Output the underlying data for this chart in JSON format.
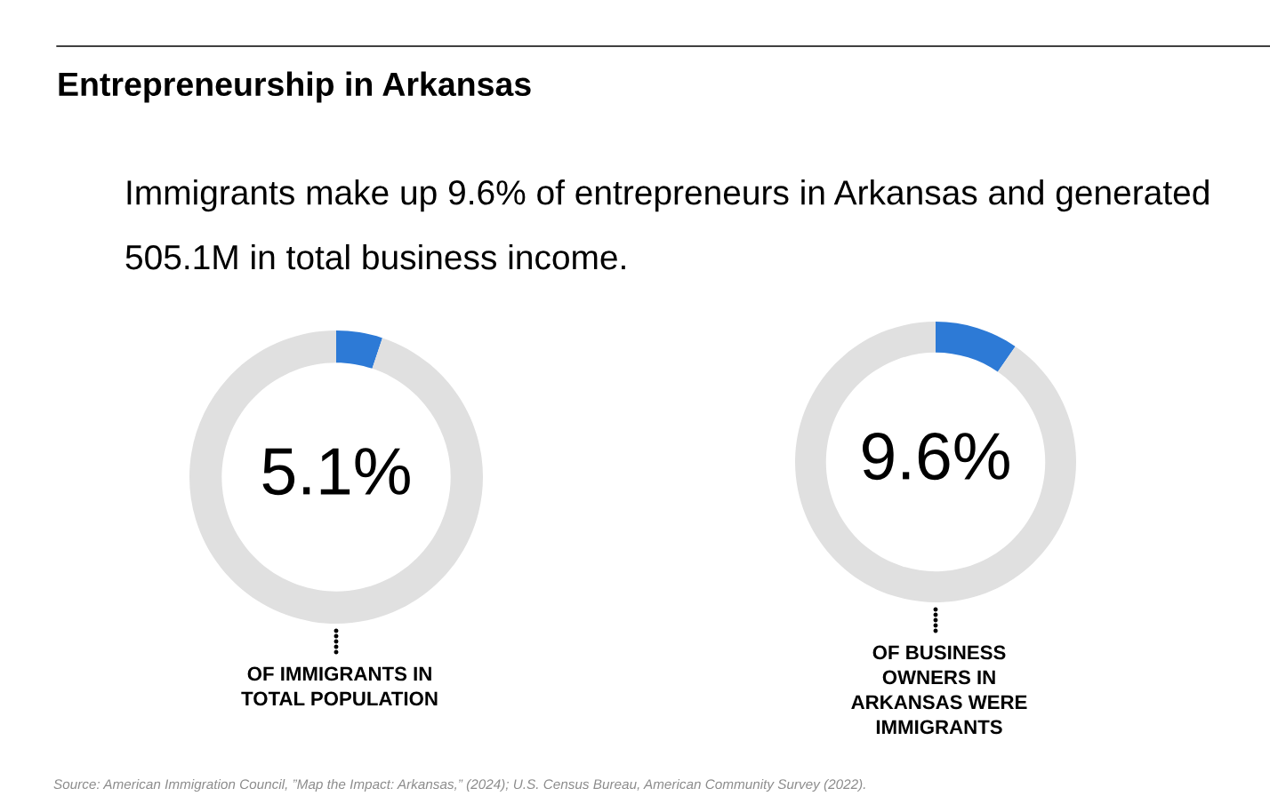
{
  "chart_data": [
    {
      "type": "other",
      "title": "Entrepreneurship in Arkansas",
      "subtitle": "Immigrants make up 9.6% of entrepreneurs in Arkansas and generated 505.1M in total business income.",
      "annotations": [
        "Source: American Immigration Council, ”Map the Impact: Arkansas,” (2024); U.S. Census Bureau, American Community Survey (2022)."
      ]
    },
    {
      "type": "donut",
      "categories": [
        null,
        null
      ],
      "values": [
        5.1,
        94.9
      ],
      "colors": [
        "#2d7ad6",
        "#e0e0e0"
      ],
      "value_labels": [
        "5.1%",
        null
      ],
      "annotations": [
        "OF IMMIGRANTS IN\nTOTAL POPULATION"
      ]
    },
    {
      "type": "donut",
      "categories": [
        null,
        null
      ],
      "values": [
        9.6,
        90.4
      ],
      "colors": [
        "#2d7ad6",
        "#e0e0e0"
      ],
      "value_labels": [
        "9.6%",
        null
      ],
      "annotations": [
        "OF BUSINESS\nOWNERS IN\nARKANSAS WERE\nIMMIGRANTS"
      ]
    }
  ]
}
